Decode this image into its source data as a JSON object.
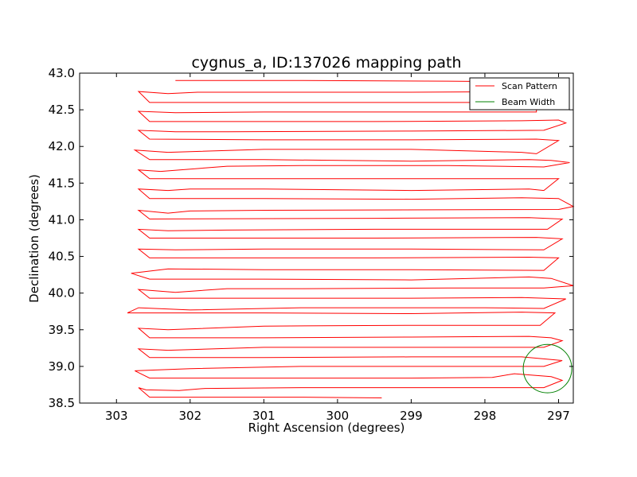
{
  "chart_data": {
    "type": "line",
    "title": "cygnus_a, ID:137026 mapping path",
    "xlabel": "Right Ascension (degrees)",
    "ylabel": "Declination (degrees)",
    "xlim": [
      303.5,
      296.8
    ],
    "ylim": [
      38.5,
      43.0
    ],
    "x_ticks": [
      "303",
      "302",
      "301",
      "300",
      "299",
      "298",
      "297"
    ],
    "y_ticks": [
      "38.5",
      "39.0",
      "39.5",
      "40.0",
      "40.5",
      "41.0",
      "41.5",
      "42.0",
      "42.5",
      "43.0"
    ],
    "grid": false,
    "legend_position": "top-right",
    "colors": {
      "scan": "#ff0000",
      "beam": "#008000"
    },
    "series": [
      {
        "name": "Scan Pattern",
        "points": [
          [
            302.2,
            42.9
          ],
          [
            300.5,
            42.9
          ],
          [
            298.5,
            42.89
          ],
          [
            297.3,
            42.88
          ],
          [
            297.3,
            42.75
          ],
          [
            299.0,
            42.74
          ],
          [
            301.0,
            42.74
          ],
          [
            301.9,
            42.74
          ],
          [
            302.3,
            42.72
          ],
          [
            302.7,
            42.75
          ],
          [
            302.55,
            42.6
          ],
          [
            301.5,
            42.6
          ],
          [
            299.5,
            42.6
          ],
          [
            297.3,
            42.6
          ],
          [
            297.3,
            42.47
          ],
          [
            299.0,
            42.47
          ],
          [
            301.0,
            42.47
          ],
          [
            302.2,
            42.46
          ],
          [
            302.7,
            42.48
          ],
          [
            302.55,
            42.34
          ],
          [
            301.0,
            42.34
          ],
          [
            299.5,
            42.34
          ],
          [
            297.5,
            42.35
          ],
          [
            297.0,
            42.36
          ],
          [
            296.9,
            42.32
          ],
          [
            297.2,
            42.22
          ],
          [
            299.0,
            42.21
          ],
          [
            301.5,
            42.2
          ],
          [
            302.2,
            42.2
          ],
          [
            302.7,
            42.22
          ],
          [
            302.55,
            42.1
          ],
          [
            301.0,
            42.09
          ],
          [
            299.0,
            42.09
          ],
          [
            297.3,
            42.1
          ],
          [
            297.0,
            42.08
          ],
          [
            297.3,
            41.9
          ],
          [
            297.5,
            41.92
          ],
          [
            299.0,
            41.96
          ],
          [
            301.0,
            41.96
          ],
          [
            302.3,
            41.92
          ],
          [
            302.75,
            41.95
          ],
          [
            302.55,
            41.82
          ],
          [
            301.0,
            41.82
          ],
          [
            299.0,
            41.8
          ],
          [
            297.4,
            41.82
          ],
          [
            297.1,
            41.81
          ],
          [
            296.85,
            41.78
          ],
          [
            297.2,
            41.72
          ],
          [
            298.5,
            41.74
          ],
          [
            300.5,
            41.74
          ],
          [
            301.5,
            41.73
          ],
          [
            302.4,
            41.66
          ],
          [
            302.7,
            41.68
          ],
          [
            302.55,
            41.56
          ],
          [
            301.5,
            41.56
          ],
          [
            299.5,
            41.56
          ],
          [
            297.5,
            41.56
          ],
          [
            297.0,
            41.56
          ],
          [
            297.2,
            41.4
          ],
          [
            297.4,
            41.42
          ],
          [
            299.0,
            41.4
          ],
          [
            301.0,
            41.42
          ],
          [
            302.0,
            41.42
          ],
          [
            302.3,
            41.4
          ],
          [
            302.7,
            41.42
          ],
          [
            302.55,
            41.29
          ],
          [
            301.0,
            41.29
          ],
          [
            299.0,
            41.28
          ],
          [
            297.5,
            41.3
          ],
          [
            297.0,
            41.29
          ],
          [
            296.8,
            41.18
          ],
          [
            297.0,
            41.14
          ],
          [
            301.0,
            41.13
          ],
          [
            302.0,
            41.12
          ],
          [
            302.3,
            41.09
          ],
          [
            302.7,
            41.13
          ],
          [
            302.55,
            41.01
          ],
          [
            299.5,
            41.02
          ],
          [
            297.4,
            41.03
          ],
          [
            296.95,
            41.01
          ],
          [
            297.15,
            40.87
          ],
          [
            299.5,
            40.87
          ],
          [
            301.5,
            40.86
          ],
          [
            302.3,
            40.85
          ],
          [
            302.7,
            40.87
          ],
          [
            302.55,
            40.75
          ],
          [
            299.5,
            40.75
          ],
          [
            297.3,
            40.76
          ],
          [
            296.95,
            40.74
          ],
          [
            297.2,
            40.59
          ],
          [
            299.0,
            40.6
          ],
          [
            301.0,
            40.6
          ],
          [
            302.2,
            40.59
          ],
          [
            302.7,
            40.6
          ],
          [
            302.55,
            40.48
          ],
          [
            299.5,
            40.48
          ],
          [
            297.4,
            40.49
          ],
          [
            297.0,
            40.48
          ],
          [
            297.2,
            40.31
          ],
          [
            299.0,
            40.32
          ],
          [
            301.0,
            40.32
          ],
          [
            302.3,
            40.33
          ],
          [
            302.8,
            40.27
          ],
          [
            302.55,
            40.19
          ],
          [
            301.0,
            40.19
          ],
          [
            299.0,
            40.18
          ],
          [
            297.4,
            40.22
          ],
          [
            297.1,
            40.2
          ],
          [
            296.8,
            40.1
          ],
          [
            297.2,
            40.07
          ],
          [
            298.5,
            40.07
          ],
          [
            300.5,
            40.06
          ],
          [
            301.5,
            40.06
          ],
          [
            302.2,
            40.01
          ],
          [
            302.7,
            40.05
          ],
          [
            302.55,
            39.93
          ],
          [
            301.0,
            39.93
          ],
          [
            299.0,
            39.93
          ],
          [
            297.5,
            39.94
          ],
          [
            296.9,
            39.92
          ],
          [
            297.2,
            39.79
          ],
          [
            298.0,
            39.8
          ],
          [
            300.5,
            39.8
          ],
          [
            302.0,
            39.77
          ],
          [
            302.7,
            39.8
          ],
          [
            302.85,
            39.73
          ],
          [
            301.0,
            39.73
          ],
          [
            299.0,
            39.72
          ],
          [
            297.5,
            39.74
          ],
          [
            297.05,
            39.73
          ],
          [
            297.25,
            39.56
          ],
          [
            299.0,
            39.56
          ],
          [
            301.0,
            39.55
          ],
          [
            302.3,
            39.5
          ],
          [
            302.7,
            39.52
          ],
          [
            302.55,
            39.39
          ],
          [
            301.0,
            39.39
          ],
          [
            299.0,
            39.4
          ],
          [
            297.4,
            39.41
          ],
          [
            297.1,
            39.39
          ],
          [
            296.95,
            39.35
          ],
          [
            297.2,
            39.26
          ],
          [
            299.0,
            39.26
          ],
          [
            301.0,
            39.26
          ],
          [
            302.3,
            39.22
          ],
          [
            302.7,
            39.24
          ],
          [
            302.55,
            39.12
          ],
          [
            301.0,
            39.12
          ],
          [
            299.0,
            39.13
          ],
          [
            297.5,
            39.13
          ],
          [
            296.95,
            39.08
          ],
          [
            297.2,
            39.0
          ],
          [
            298.0,
            39.0
          ],
          [
            300.5,
            39.0
          ],
          [
            302.0,
            38.97
          ],
          [
            302.75,
            38.94
          ],
          [
            302.55,
            38.84
          ],
          [
            301.0,
            38.84
          ],
          [
            299.0,
            38.84
          ],
          [
            297.9,
            38.85
          ],
          [
            297.6,
            38.9
          ],
          [
            297.1,
            38.86
          ],
          [
            296.95,
            38.81
          ],
          [
            297.2,
            38.71
          ],
          [
            298.5,
            38.71
          ],
          [
            300.5,
            38.71
          ],
          [
            301.8,
            38.7
          ],
          [
            302.15,
            38.67
          ],
          [
            302.6,
            38.68
          ],
          [
            302.7,
            38.71
          ],
          [
            302.55,
            38.58
          ],
          [
            300.5,
            38.58
          ],
          [
            299.4,
            38.57
          ]
        ]
      },
      {
        "name": "Beam Width",
        "circle": {
          "center": [
            297.15,
            38.97
          ],
          "radius": 0.33
        }
      }
    ]
  }
}
